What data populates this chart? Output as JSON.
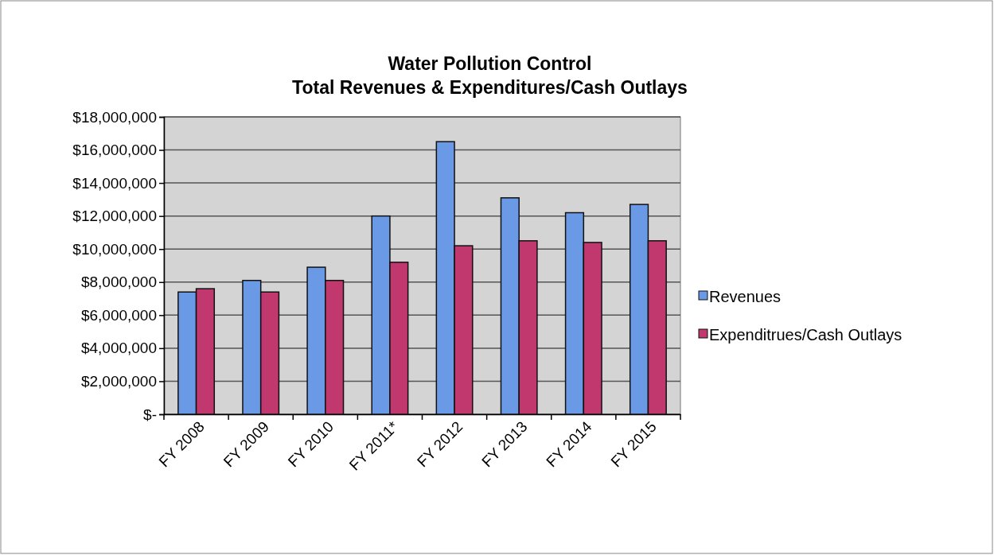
{
  "chart_data": {
    "type": "bar",
    "title": "Water Pollution Control\nTotal Revenues & Expenditures/Cash Outlays",
    "categories": [
      "FY 2008",
      "FY 2009",
      "FY 2010",
      "FY 2011*",
      "FY 2012",
      "FY 2013",
      "FY 2014",
      "FY 2015"
    ],
    "series": [
      {
        "name": "Revenues",
        "color": "#6a9ae6",
        "values": [
          7400000,
          8100000,
          8900000,
          12000000,
          16500000,
          13100000,
          12200000,
          12700000
        ]
      },
      {
        "name": "Expenditrues/Cash Outlays",
        "color": "#c0386e",
        "values": [
          7600000,
          7400000,
          8100000,
          9200000,
          10200000,
          10500000,
          10400000,
          10500000
        ]
      }
    ],
    "ylim": [
      0,
      18000000
    ],
    "yticks": [
      {
        "value": 0,
        "label": "$-"
      },
      {
        "value": 2000000,
        "label": "$2,000,000"
      },
      {
        "value": 4000000,
        "label": "$4,000,000"
      },
      {
        "value": 6000000,
        "label": "$6,000,000"
      },
      {
        "value": 8000000,
        "label": "$8,000,000"
      },
      {
        "value": 10000000,
        "label": "$10,000,000"
      },
      {
        "value": 12000000,
        "label": "$12,000,000"
      },
      {
        "value": 14000000,
        "label": "$14,000,000"
      },
      {
        "value": 16000000,
        "label": "$16,000,000"
      },
      {
        "value": 18000000,
        "label": "$18,000,000"
      }
    ],
    "grid": "y",
    "legend": "right"
  }
}
